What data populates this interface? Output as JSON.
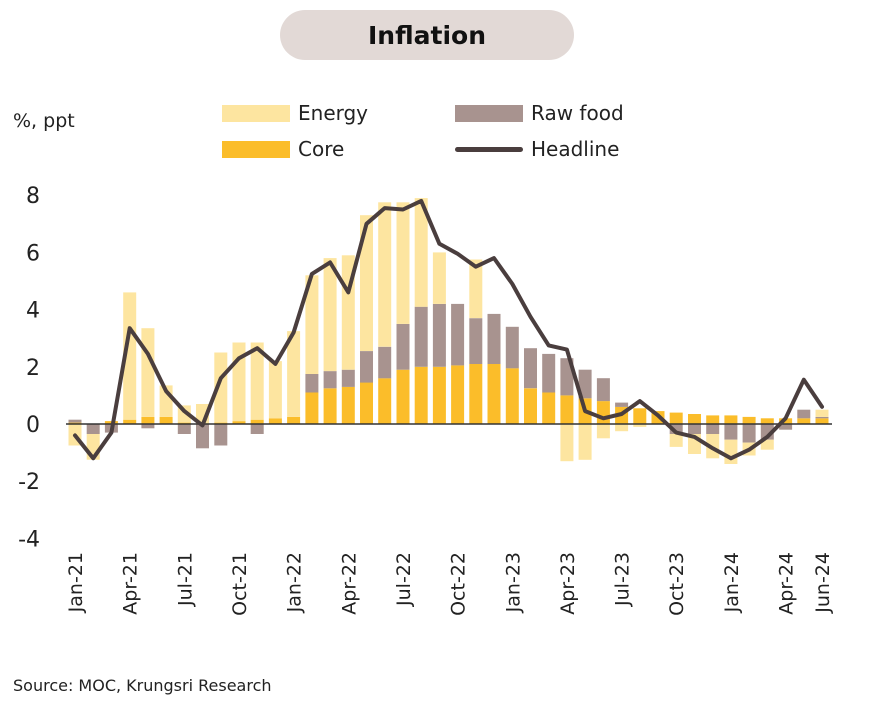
{
  "title": "Inflation",
  "unit_label": "%, ppt",
  "source": "Source: MOC, Krungsri Research",
  "colors": {
    "energy": "#fde5a0",
    "raw_food": "#a8938f",
    "core": "#fbbd2a",
    "headline": "#4a3e3e",
    "axis": "#333333",
    "title_bg": "#e2d9d6"
  },
  "legend": [
    {
      "key": "energy",
      "label": "Energy"
    },
    {
      "key": "raw_food",
      "label": "Raw food"
    },
    {
      "key": "core",
      "label": "Core"
    },
    {
      "key": "headline",
      "label": "Headline"
    }
  ],
  "chart_data": {
    "type": "bar",
    "stacked": true,
    "ylim": [
      -4,
      8
    ],
    "yticks": [
      8,
      6,
      4,
      2,
      0,
      -2,
      -4
    ],
    "grid": false,
    "legend_position": "top",
    "x": [
      "Jan-21",
      "Feb-21",
      "Mar-21",
      "Apr-21",
      "May-21",
      "Jun-21",
      "Jul-21",
      "Aug-21",
      "Sep-21",
      "Oct-21",
      "Nov-21",
      "Dec-21",
      "Jan-22",
      "Feb-22",
      "Mar-22",
      "Apr-22",
      "May-22",
      "Jun-22",
      "Jul-22",
      "Aug-22",
      "Sep-22",
      "Oct-22",
      "Nov-22",
      "Dec-22",
      "Jan-23",
      "Feb-23",
      "Mar-23",
      "Apr-23",
      "May-23",
      "Jun-23",
      "Jul-23",
      "Aug-23",
      "Sep-23",
      "Oct-23",
      "Nov-23",
      "Dec-23",
      "Jan-24",
      "Feb-24",
      "Mar-24",
      "Apr-24",
      "May-24",
      "Jun-24"
    ],
    "xtick_labels": [
      "Jan-21",
      "Apr-21",
      "Jul-21",
      "Oct-21",
      "Jan-22",
      "Apr-22",
      "Jul-22",
      "Oct-22",
      "Jan-23",
      "Apr-23",
      "Jul-23",
      "Oct-23",
      "Jan-24",
      "Apr-24",
      "Jun-24"
    ],
    "series": [
      {
        "name": "Core",
        "key": "core",
        "kind": "bar",
        "values": [
          0.05,
          0.0,
          0.1,
          0.15,
          0.25,
          0.25,
          0.05,
          0.0,
          0.05,
          0.1,
          0.15,
          0.2,
          0.25,
          1.1,
          1.25,
          1.3,
          1.45,
          1.6,
          1.9,
          2.0,
          2.0,
          2.05,
          2.1,
          2.1,
          1.95,
          1.25,
          1.1,
          1.0,
          0.9,
          0.8,
          0.6,
          0.55,
          0.45,
          0.4,
          0.35,
          0.3,
          0.3,
          0.25,
          0.2,
          0.2,
          0.2,
          0.2
        ]
      },
      {
        "name": "Raw food",
        "key": "raw_food",
        "kind": "bar",
        "values": [
          0.1,
          -0.35,
          -0.3,
          0.0,
          -0.15,
          0.0,
          -0.35,
          -0.85,
          -0.75,
          0.0,
          -0.35,
          0.0,
          0.0,
          0.65,
          0.6,
          0.6,
          1.1,
          1.1,
          1.6,
          2.1,
          2.2,
          2.15,
          1.6,
          1.75,
          1.45,
          1.4,
          1.35,
          1.3,
          1.0,
          0.8,
          0.15,
          0.0,
          0.0,
          -0.35,
          -0.35,
          -0.35,
          -0.55,
          -0.65,
          -0.55,
          -0.2,
          0.3,
          0.05
        ]
      },
      {
        "name": "Energy",
        "key": "energy",
        "kind": "bar",
        "values": [
          -0.75,
          -0.9,
          0.0,
          4.45,
          3.1,
          1.1,
          0.6,
          0.7,
          2.45,
          2.75,
          2.7,
          2.0,
          3.0,
          3.45,
          3.95,
          4.0,
          4.75,
          5.05,
          4.25,
          3.8,
          1.8,
          0.0,
          2.05,
          0.0,
          0.0,
          0.0,
          0.0,
          -1.3,
          -1.25,
          -0.5,
          -0.25,
          -0.1,
          0.0,
          -0.45,
          -0.7,
          -0.85,
          -0.85,
          -0.45,
          -0.35,
          0.0,
          0.0,
          0.25
        ]
      },
      {
        "name": "Headline",
        "key": "headline",
        "kind": "line",
        "values": [
          -0.4,
          -1.2,
          -0.3,
          3.35,
          2.45,
          1.15,
          0.45,
          -0.05,
          1.6,
          2.3,
          2.65,
          2.1,
          3.2,
          5.25,
          5.65,
          4.6,
          7.0,
          7.55,
          7.5,
          7.8,
          6.3,
          5.95,
          5.5,
          5.8,
          4.9,
          3.75,
          2.75,
          2.6,
          0.45,
          0.2,
          0.35,
          0.8,
          0.3,
          -0.3,
          -0.45,
          -0.85,
          -1.2,
          -0.9,
          -0.45,
          0.2,
          1.55,
          0.6
        ]
      }
    ]
  }
}
